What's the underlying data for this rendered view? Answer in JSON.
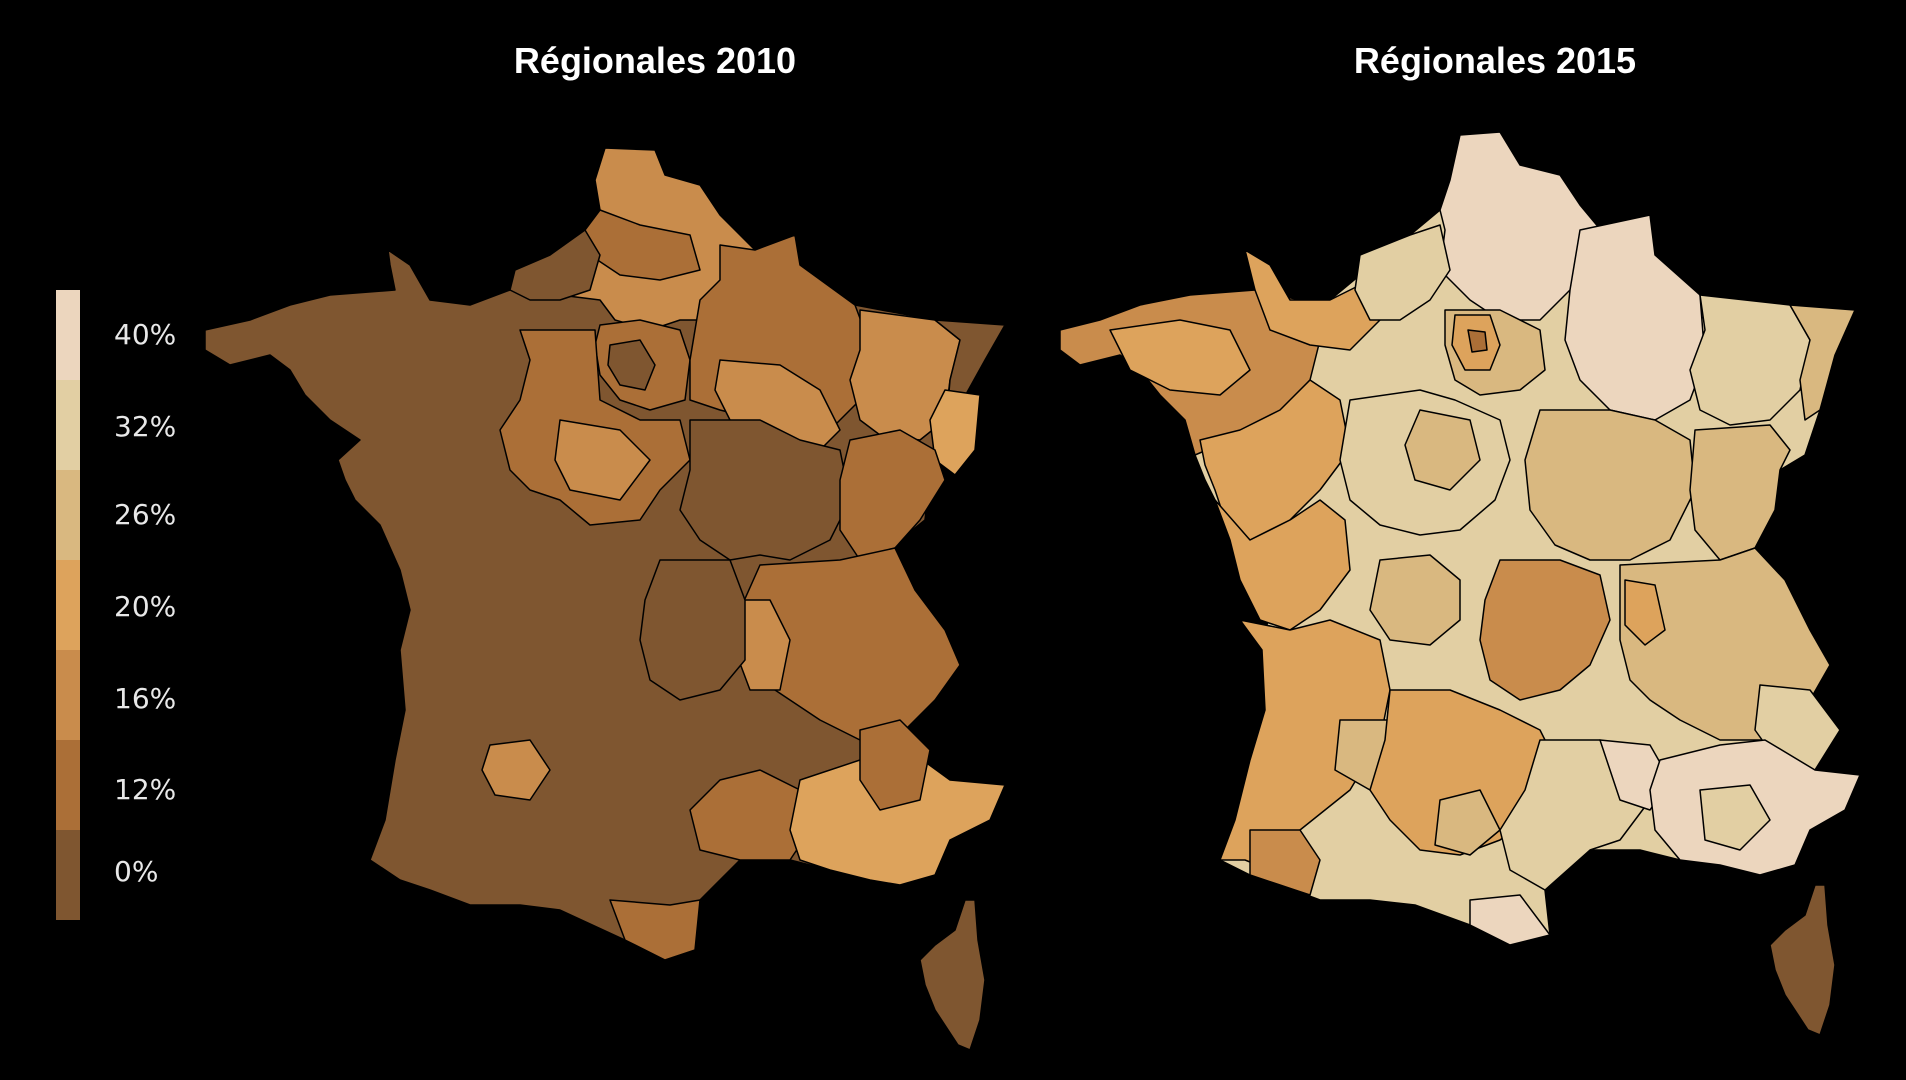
{
  "maps": [
    {
      "title": "Régionales 2010"
    },
    {
      "title": "Régionales 2015"
    }
  ],
  "legend": {
    "labels": [
      "40%",
      "32%",
      "26%",
      "20%",
      "16%",
      "12%",
      "0%"
    ],
    "colors": [
      "#ecd6be",
      "#e2cfa3",
      "#d9b880",
      "#dda35c",
      "#c98c4c",
      "#ab6f37",
      "#7f5630"
    ]
  },
  "colors": {
    "background": "#000000",
    "border": "#000000",
    "dark": "#7f5630",
    "mid_dark": "#ab6f37",
    "mid": "#c98c4c",
    "orange": "#dda35c",
    "tan": "#d9b880",
    "light_tan": "#e2cfa3",
    "pale": "#ecd6be"
  }
}
